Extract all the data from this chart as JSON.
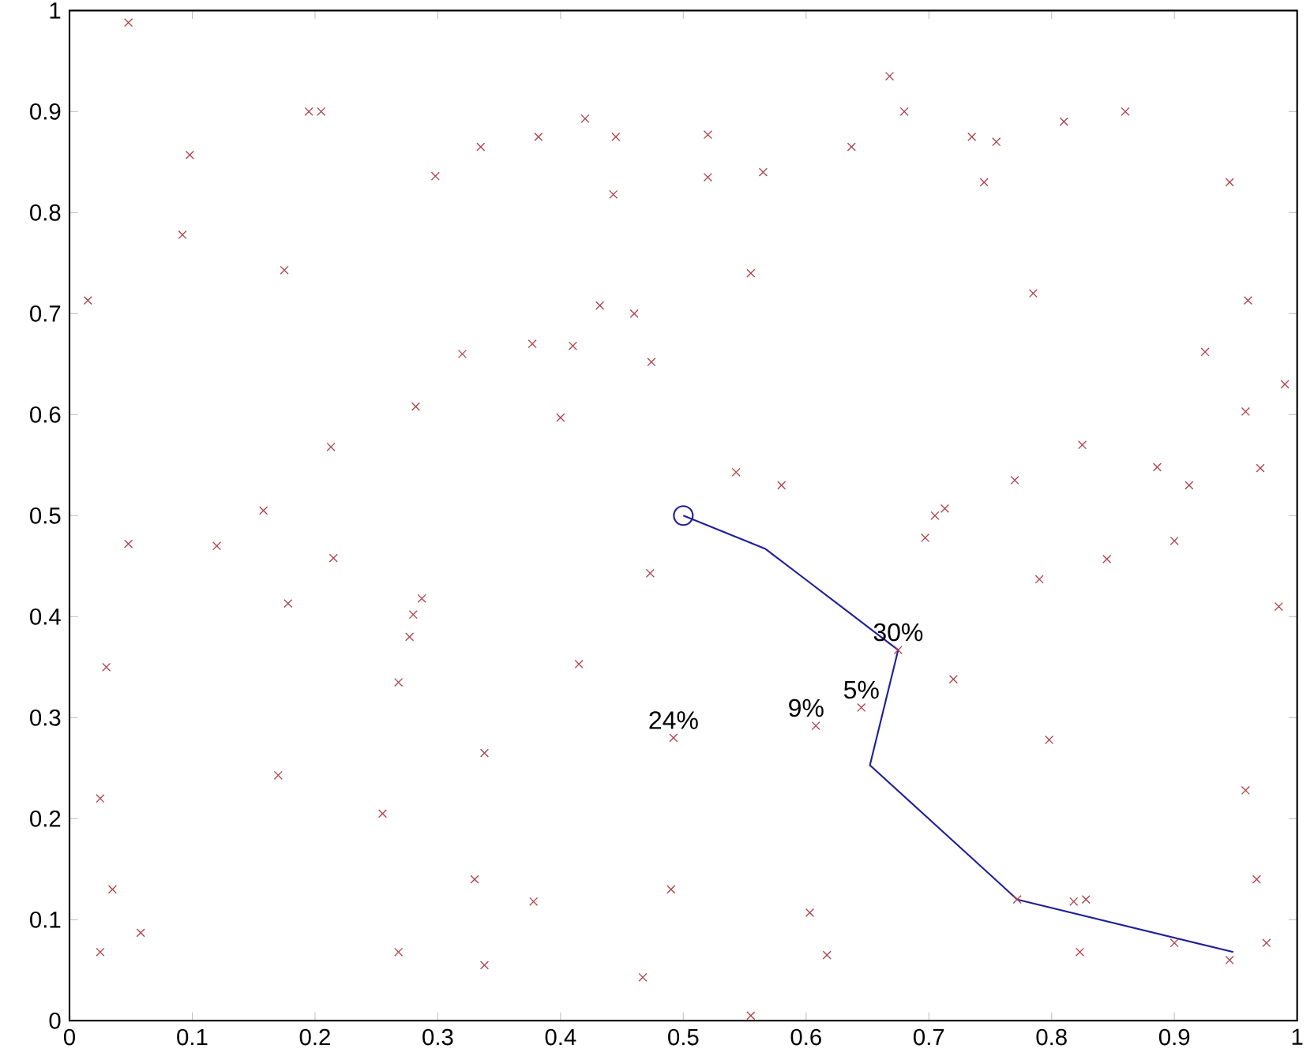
{
  "chart_data": {
    "type": "scatter",
    "xlim": [
      0,
      1
    ],
    "ylim": [
      0,
      1
    ],
    "xticks": [
      0,
      0.1,
      0.2,
      0.3,
      0.4,
      0.5,
      0.6,
      0.7,
      0.8,
      0.9,
      1
    ],
    "yticks": [
      0,
      0.1,
      0.2,
      0.3,
      0.4,
      0.5,
      0.6,
      0.7,
      0.8,
      0.9,
      1
    ],
    "series": [
      {
        "marker": "cross",
        "color": "#b0404a",
        "x": [
          0.015,
          0.048,
          0.098,
          0.092,
          0.175,
          0.195,
          0.205,
          0.298,
          0.32,
          0.282,
          0.213,
          0.158,
          0.335,
          0.382,
          0.42,
          0.445,
          0.443,
          0.52,
          0.52,
          0.565,
          0.637,
          0.555,
          0.432,
          0.46,
          0.377,
          0.41,
          0.474,
          0.4,
          0.668,
          0.68,
          0.735,
          0.755,
          0.745,
          0.81,
          0.86,
          0.945,
          0.785,
          0.96,
          0.925,
          0.99,
          0.958,
          0.825,
          0.886,
          0.97,
          0.912,
          0.77,
          0.543,
          0.58,
          0.048,
          0.12,
          0.215,
          0.178,
          0.287,
          0.28,
          0.277,
          0.268,
          0.03,
          0.17,
          0.025,
          0.255,
          0.035,
          0.058,
          0.025,
          0.268,
          0.473,
          0.415,
          0.338,
          0.492,
          0.608,
          0.645,
          0.33,
          0.378,
          0.49,
          0.338,
          0.467,
          0.603,
          0.617,
          0.555,
          0.697,
          0.705,
          0.713,
          0.79,
          0.845,
          0.9,
          0.985,
          0.72,
          0.798,
          0.958,
          0.967,
          0.818,
          0.828,
          0.823,
          0.9,
          0.975,
          0.945,
          0.675,
          0.772
        ],
        "values": [
          0.713,
          0.988,
          0.857,
          0.778,
          0.743,
          0.9,
          0.9,
          0.836,
          0.66,
          0.608,
          0.568,
          0.505,
          0.865,
          0.875,
          0.893,
          0.875,
          0.818,
          0.877,
          0.835,
          0.84,
          0.865,
          0.74,
          0.708,
          0.7,
          0.67,
          0.668,
          0.652,
          0.597,
          0.935,
          0.9,
          0.875,
          0.87,
          0.83,
          0.89,
          0.9,
          0.83,
          0.72,
          0.713,
          0.662,
          0.63,
          0.603,
          0.57,
          0.548,
          0.547,
          0.53,
          0.535,
          0.543,
          0.53,
          0.472,
          0.47,
          0.458,
          0.413,
          0.418,
          0.402,
          0.38,
          0.335,
          0.35,
          0.243,
          0.22,
          0.205,
          0.13,
          0.087,
          0.068,
          0.068,
          0.443,
          0.353,
          0.265,
          0.28,
          0.292,
          0.31,
          0.14,
          0.118,
          0.13,
          0.055,
          0.043,
          0.107,
          0.065,
          0.005,
          0.478,
          0.5,
          0.507,
          0.437,
          0.457,
          0.475,
          0.41,
          0.338,
          0.278,
          0.228,
          0.14,
          0.118,
          0.12,
          0.068,
          0.077,
          0.077,
          0.06,
          0.367,
          0.12
        ]
      },
      {
        "type": "line",
        "marker": "none",
        "color": "#1f1f9a",
        "x": [
          0.5,
          0.567,
          0.675,
          0.652,
          0.772,
          0.948
        ],
        "values": [
          0.5,
          0.467,
          0.367,
          0.253,
          0.12,
          0.068
        ]
      },
      {
        "marker": "circle",
        "color": "#1f1f9a",
        "x": [
          0.5
        ],
        "values": [
          0.5
        ]
      }
    ],
    "annotations": [
      {
        "text": "30%",
        "x": 0.675,
        "y": 0.367
      },
      {
        "text": "24%",
        "x": 0.492,
        "y": 0.28
      },
      {
        "text": "9%",
        "x": 0.6,
        "y": 0.292
      },
      {
        "text": "5%",
        "x": 0.645,
        "y": 0.31
      }
    ]
  }
}
